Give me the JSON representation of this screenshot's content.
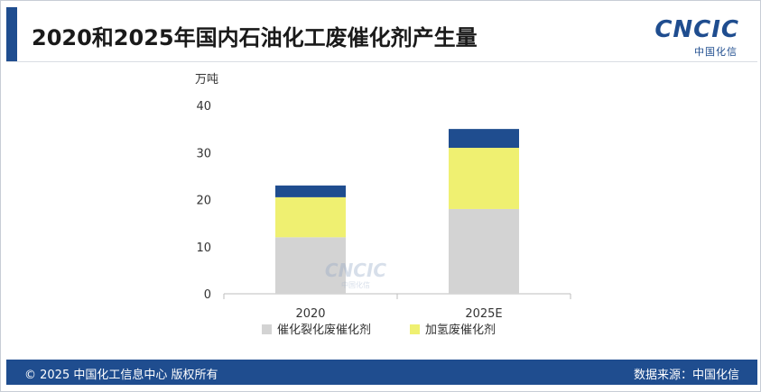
{
  "header": {
    "title": "2020和2025年国内石油化工废催化剂产生量",
    "logo_text": "CNCIC",
    "logo_subtext": "中国化信"
  },
  "watermark": {
    "text": "CNCIC",
    "subtext": "中国化信"
  },
  "colors": {
    "brand": "#1f4d8f",
    "series_cracking": "#d3d3d3",
    "series_hydro": "#eff071",
    "series_top": "#1f4d8f"
  },
  "chart_data": {
    "type": "bar",
    "stacked": true,
    "categories": [
      "2020",
      "2025E"
    ],
    "ylabel": "万吨",
    "ylim": [
      0,
      40
    ],
    "yticks": [
      0,
      10,
      20,
      30,
      40
    ],
    "grid": false,
    "legend_position": "bottom",
    "series": [
      {
        "name": "催化裂化废催化剂",
        "values": [
          12,
          18
        ]
      },
      {
        "name": "加氢废催化剂",
        "values": [
          8.5,
          13
        ]
      },
      {
        "name": "",
        "values": [
          2.5,
          4
        ]
      }
    ]
  },
  "footer": {
    "left": "© 2025 中国化工信息中心  版权所有",
    "right": "数据来源：中国化信"
  }
}
